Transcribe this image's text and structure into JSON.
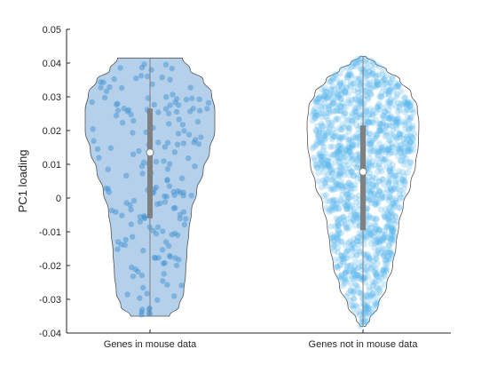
{
  "chart_data": {
    "type": "violin",
    "title": "",
    "xlabel": "",
    "ylabel": "PC1 loading",
    "ylim": [
      -0.04,
      0.05
    ],
    "yticks": [
      "0.05",
      "0.04",
      "0.03",
      "0.02",
      "0.01",
      "0",
      "-0.01",
      "-0.02",
      "-0.03",
      "-0.04"
    ],
    "categories": [
      "Genes in mouse data",
      "Genes not in mouse data"
    ],
    "grid": false,
    "legend": "none",
    "series": [
      {
        "category": "Genes in mouse data",
        "color_fill": "#a7c8e6",
        "color_points": "#3b8fd0",
        "min": -0.035,
        "max": 0.0415,
        "q1": -0.006,
        "median": 0.0135,
        "q3": 0.0265,
        "n_points": 190,
        "density": [
          [
            -0.035,
            0.3
          ],
          [
            -0.032,
            0.45
          ],
          [
            -0.028,
            0.52
          ],
          [
            -0.022,
            0.55
          ],
          [
            -0.016,
            0.57
          ],
          [
            -0.01,
            0.6
          ],
          [
            -0.004,
            0.64
          ],
          [
            0.002,
            0.72
          ],
          [
            0.008,
            0.82
          ],
          [
            0.014,
            0.92
          ],
          [
            0.02,
            1.0
          ],
          [
            0.026,
            1.0
          ],
          [
            0.031,
            0.95
          ],
          [
            0.035,
            0.82
          ],
          [
            0.038,
            0.62
          ],
          [
            0.0415,
            0.5
          ]
        ]
      },
      {
        "category": "Genes not in mouse data",
        "color_fill": "#ffffff",
        "color_points": "#5ab8ec",
        "min": -0.038,
        "max": 0.042,
        "q1": -0.0095,
        "median": 0.0078,
        "q3": 0.0215,
        "n_points": 1400,
        "density": [
          [
            -0.038,
            0.05
          ],
          [
            -0.036,
            0.12
          ],
          [
            -0.032,
            0.27
          ],
          [
            -0.026,
            0.42
          ],
          [
            -0.02,
            0.53
          ],
          [
            -0.014,
            0.59
          ],
          [
            -0.008,
            0.64
          ],
          [
            -0.002,
            0.72
          ],
          [
            0.004,
            0.85
          ],
          [
            0.01,
            0.94
          ],
          [
            0.016,
            0.99
          ],
          [
            0.022,
            1.0
          ],
          [
            0.027,
            0.97
          ],
          [
            0.031,
            0.86
          ],
          [
            0.035,
            0.66
          ],
          [
            0.038,
            0.42
          ],
          [
            0.04,
            0.22
          ],
          [
            0.042,
            0.05
          ]
        ]
      }
    ]
  }
}
